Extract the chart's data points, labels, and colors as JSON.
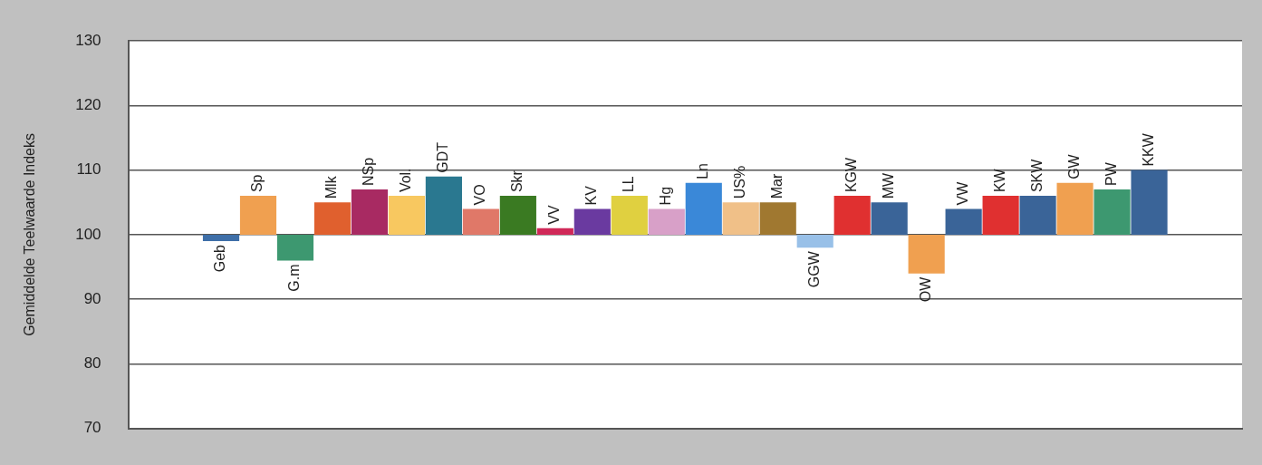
{
  "chart_data": {
    "type": "bar",
    "ylabel": "Gemiddelde Teelwaarde Indeks",
    "categories": [
      null,
      null,
      "Geb",
      "Sp",
      "G.m",
      "Mlk",
      "NSp",
      "Vol.",
      "GDT",
      "VO",
      "Skr",
      "VV",
      "KV",
      "LL",
      "Hg",
      "Ln",
      "US%",
      "Mar",
      "GGW",
      "KGW",
      "MW",
      "OW",
      "VW",
      "KW",
      "SKW",
      "GW",
      "PW",
      "KKW",
      null,
      null
    ],
    "base": [
      null,
      null,
      100,
      100,
      100,
      100,
      100,
      100,
      100,
      100,
      100,
      100,
      100,
      100,
      100,
      100,
      100,
      100,
      100,
      100,
      100,
      100,
      100,
      100,
      100,
      100,
      100,
      100,
      null,
      null
    ],
    "values": [
      null,
      null,
      -1,
      6,
      -4,
      5,
      7,
      6,
      9,
      4,
      6,
      1,
      4,
      6,
      4,
      8,
      5,
      5,
      -2,
      6,
      5,
      -6,
      4,
      6,
      6,
      8,
      7,
      10,
      null,
      null
    ],
    "colors": [
      "#3a6498",
      "#3a6498",
      "#3e6fa8",
      "#f0a050",
      "#3d9870",
      "#e0602e",
      "#a82a62",
      "#f8c860",
      "#2a7890",
      "#e07868",
      "#3a7a22",
      "#d02858",
      "#6a3aa0",
      "#e0d040",
      "#d8a0c8",
      "#3a88d8",
      "#f0c088",
      "#a07830",
      "#98c0e8",
      "#e03030",
      "#3a6498",
      "#f0a050",
      "#3a6498",
      "#e03030",
      "#3a6498",
      "#f0a050",
      "#3d9870",
      "#3a6498",
      "#3a6498",
      "#3a6498"
    ],
    "ylim": [
      70,
      130
    ],
    "yticks": [
      70,
      80,
      90,
      100,
      110,
      120,
      130
    ],
    "grid": "y",
    "legend": false
  }
}
